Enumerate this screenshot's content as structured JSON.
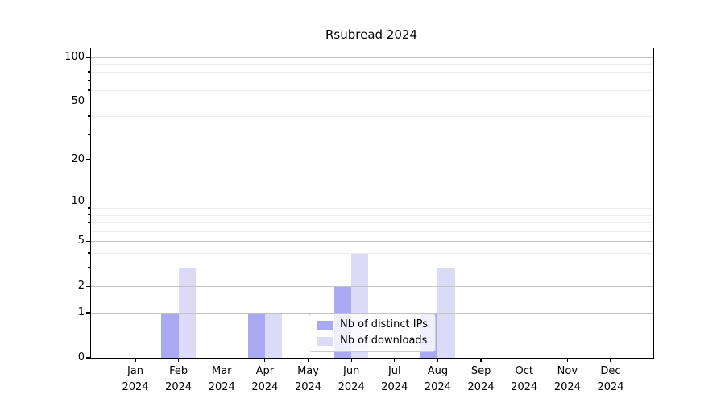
{
  "title": "Rsubread 2024",
  "colors": {
    "distinct_ips": "#a9a9f1",
    "downloads": "#dbdbf7",
    "grid_major": "#c3c3c3",
    "grid_minor": "#ececec",
    "axis": "#000000"
  },
  "legend": {
    "items": [
      {
        "label": "Nb of distinct IPs",
        "color": "#a9a9f1"
      },
      {
        "label": "Nb of downloads",
        "color": "#dbdbf7"
      }
    ]
  },
  "chart_data": {
    "type": "bar",
    "title": "Rsubread 2024",
    "categories": [
      {
        "line1": "Jan",
        "line2": "2024"
      },
      {
        "line1": "Feb",
        "line2": "2024"
      },
      {
        "line1": "Mar",
        "line2": "2024"
      },
      {
        "line1": "Apr",
        "line2": "2024"
      },
      {
        "line1": "May",
        "line2": "2024"
      },
      {
        "line1": "Jun",
        "line2": "2024"
      },
      {
        "line1": "Jul",
        "line2": "2024"
      },
      {
        "line1": "Aug",
        "line2": "2024"
      },
      {
        "line1": "Sep",
        "line2": "2024"
      },
      {
        "line1": "Oct",
        "line2": "2024"
      },
      {
        "line1": "Nov",
        "line2": "2024"
      },
      {
        "line1": "Dec",
        "line2": "2024"
      }
    ],
    "series": [
      {
        "name": "Nb of distinct IPs",
        "color": "#a9a9f1",
        "values": [
          0,
          1,
          0,
          1,
          0,
          2,
          0,
          1,
          0,
          0,
          0,
          0
        ]
      },
      {
        "name": "Nb of downloads",
        "color": "#dbdbf7",
        "values": [
          0,
          3,
          0,
          1,
          0,
          4,
          0,
          3,
          0,
          0,
          0,
          0
        ]
      }
    ],
    "xlabel": "",
    "ylabel": "",
    "y_scale": "log1p",
    "ylim": [
      0,
      115
    ],
    "y_major_ticks": [
      0,
      1,
      2,
      5,
      10,
      20,
      50,
      100
    ],
    "y_tick_labels": [
      "0",
      "1",
      "2",
      "5",
      "10",
      "20",
      "50",
      "100"
    ],
    "y_minor_gridlines": [
      3,
      4,
      6,
      7,
      8,
      9,
      30,
      40,
      60,
      70,
      80,
      90
    ],
    "grid": true,
    "legend_position": "lower center"
  }
}
